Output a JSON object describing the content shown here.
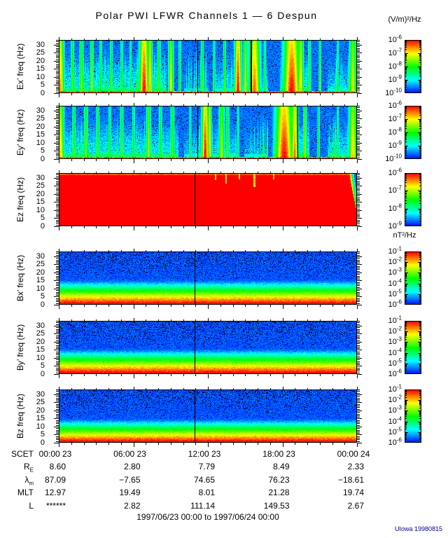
{
  "title": "Polar PWI LFWR Channels 1 — 6 Despun",
  "units": {
    "electric": "(V/m)²/Hz",
    "magnetic": "nT²/Hz"
  },
  "footer": {
    "range": "1997/06/23 00:00 to 1997/06/24 00:00",
    "credit": "UIowa 19980815",
    "credit_color": "#00008b"
  },
  "chart_data": {
    "type": "heatmap",
    "description": "Six stacked 24-hour frequency-time spectrograms from Polar PWI LFWR: electric channels Ex', Ey', Ez in (V/m)²/Hz and magnetic channels Bx', By', Bz in nT²/Hz, 0-33 Hz, rainbow colormap (blue = low, red = high).",
    "colormap": "rainbow blue-to-red",
    "time": {
      "prefix": "SCET",
      "tick_hours": [
        0,
        6,
        12,
        18,
        24
      ],
      "tick_labels": [
        "00:00 23",
        "06:00 23",
        "12:00 23",
        "18:00 23",
        "00:00 24"
      ],
      "range_hours": [
        0,
        24
      ]
    },
    "freq": {
      "ticks": [
        0,
        5,
        10,
        15,
        20,
        25,
        30
      ],
      "lim": [
        0,
        33
      ]
    },
    "panels": [
      {
        "id": "ex",
        "ylabel": "Ex’ freq (Hz)",
        "unit": "(V/m)²/Hz",
        "pattern": "bursty",
        "seed": 101,
        "colorbar_exponents": [
          -6,
          -7,
          -8,
          -9,
          -10
        ],
        "gap_fracs": [
          0.465,
          0.643
        ],
        "active_regions": [
          [
            0.0,
            0.36,
            0.55
          ],
          [
            0.42,
            0.5,
            0.3
          ],
          [
            0.52,
            0.6,
            0.45
          ],
          [
            0.6,
            0.7,
            0.4
          ],
          [
            0.74,
            0.84,
            0.55
          ],
          [
            0.9,
            1.0,
            0.42
          ]
        ],
        "bursts": [
          [
            0.005,
            0.012,
            0.85
          ],
          [
            0.045,
            0.006,
            0.6
          ],
          [
            0.075,
            0.007,
            0.65
          ],
          [
            0.11,
            0.006,
            0.7
          ],
          [
            0.14,
            0.005,
            0.55
          ],
          [
            0.175,
            0.005,
            0.6
          ],
          [
            0.21,
            0.005,
            0.55
          ],
          [
            0.24,
            0.004,
            0.5
          ],
          [
            0.285,
            0.016,
            1.0
          ],
          [
            0.305,
            0.008,
            0.85
          ],
          [
            0.335,
            0.006,
            0.6
          ],
          [
            0.375,
            0.009,
            0.75
          ],
          [
            0.405,
            0.005,
            0.55
          ],
          [
            0.48,
            0.005,
            0.6
          ],
          [
            0.52,
            0.004,
            0.55
          ],
          [
            0.555,
            0.005,
            0.6
          ],
          [
            0.6,
            0.012,
            1.0
          ],
          [
            0.625,
            0.007,
            0.75
          ],
          [
            0.655,
            0.02,
            0.9
          ],
          [
            0.69,
            0.005,
            0.5
          ],
          [
            0.78,
            0.028,
            1.0
          ],
          [
            0.81,
            0.01,
            0.8
          ],
          [
            0.84,
            0.005,
            0.6
          ],
          [
            0.875,
            0.004,
            0.65
          ],
          [
            0.935,
            0.004,
            0.5
          ],
          [
            0.985,
            0.012,
            0.75
          ]
        ]
      },
      {
        "id": "ey",
        "ylabel": "Ey’ freq (Hz)",
        "unit": "(V/m)²/Hz",
        "pattern": "bursty",
        "seed": 202,
        "colorbar_exponents": [
          -6,
          -7,
          -8,
          -9,
          -10
        ],
        "gap_fracs": [
          0.465,
          0.8
        ],
        "active_regions": [
          [
            0.0,
            0.4,
            0.55
          ],
          [
            0.42,
            0.52,
            0.4
          ],
          [
            0.52,
            0.6,
            0.45
          ],
          [
            0.62,
            0.7,
            0.35
          ],
          [
            0.72,
            0.84,
            0.6
          ],
          [
            0.9,
            1.0,
            0.5
          ]
        ],
        "bursts": [
          [
            0.005,
            0.012,
            0.8
          ],
          [
            0.05,
            0.006,
            0.6
          ],
          [
            0.09,
            0.007,
            0.65
          ],
          [
            0.13,
            0.006,
            0.6
          ],
          [
            0.17,
            0.005,
            0.55
          ],
          [
            0.21,
            0.006,
            0.6
          ],
          [
            0.25,
            0.005,
            0.55
          ],
          [
            0.3,
            0.008,
            0.7
          ],
          [
            0.34,
            0.006,
            0.55
          ],
          [
            0.38,
            0.007,
            0.6
          ],
          [
            0.44,
            0.004,
            0.5
          ],
          [
            0.49,
            0.012,
            1.0
          ],
          [
            0.505,
            0.006,
            0.85
          ],
          [
            0.545,
            0.01,
            0.7
          ],
          [
            0.565,
            0.006,
            0.6
          ],
          [
            0.6,
            0.004,
            0.5
          ],
          [
            0.755,
            0.03,
            1.0
          ],
          [
            0.79,
            0.012,
            0.9
          ],
          [
            0.825,
            0.006,
            0.7
          ],
          [
            0.87,
            0.004,
            0.55
          ],
          [
            0.935,
            0.004,
            0.5
          ],
          [
            0.985,
            0.014,
            0.8
          ]
        ]
      },
      {
        "id": "ez",
        "ylabel": "Ez freq (Hz)",
        "unit": "(V/m)²/Hz",
        "pattern": "saturated",
        "seed": 303,
        "colorbar_exponents": [
          -6,
          -7,
          -8,
          -9
        ],
        "gap_fracs": [
          0.455
        ],
        "notches": [
          [
            0.525,
            0.002,
            0.6
          ],
          [
            0.56,
            0.002,
            0.9
          ],
          [
            0.605,
            0.002,
            0.5
          ],
          [
            0.655,
            0.0025,
            1.2
          ],
          [
            0.72,
            0.002,
            0.5
          ]
        ]
      },
      {
        "id": "bx",
        "ylabel": "Bx’ freq (Hz)",
        "unit": "nT²/Hz",
        "pattern": "gradient",
        "seed": 404,
        "colorbar_exponents": [
          -1,
          -2,
          -3,
          -4,
          -5,
          -6
        ],
        "gap_fracs": [
          0.455
        ],
        "slope": 15.1
      },
      {
        "id": "by",
        "ylabel": "By’ freq (Hz)",
        "unit": "nT²/Hz",
        "pattern": "gradient",
        "seed": 505,
        "colorbar_exponents": [
          -1,
          -2,
          -3,
          -4,
          -5,
          -6
        ],
        "gap_fracs": [
          0.455
        ],
        "slope": 15.4
      },
      {
        "id": "bz",
        "ylabel": "Bz freq (Hz)",
        "unit": "nT²/Hz",
        "pattern": "gradient",
        "seed": 606,
        "colorbar_exponents": [
          -1,
          -2,
          -3,
          -4,
          -5,
          -6
        ],
        "gap_fracs": [
          0.455
        ],
        "slope": 14.6
      }
    ],
    "ephemeris": {
      "rows": [
        {
          "label": "R",
          "sub": "E",
          "values": [
            "8.60",
            "2.80",
            "7.79",
            "8.49",
            "2.33"
          ]
        },
        {
          "label": "λ",
          "sub": "m",
          "values": [
            "87.09",
            "−7.65",
            "74.65",
            "76.23",
            "−18.61"
          ]
        },
        {
          "label": "MLT",
          "sub": "",
          "values": [
            "12.97",
            "19.49",
            "8.01",
            "21.28",
            "19.74"
          ]
        },
        {
          "label": "L",
          "sub": "",
          "values": [
            "******",
            "2.82",
            "111.14",
            "149.53",
            "2.67"
          ]
        }
      ]
    }
  }
}
